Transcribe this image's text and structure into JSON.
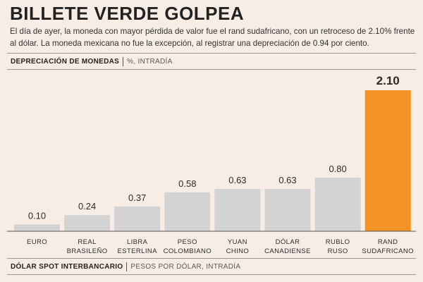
{
  "header": {
    "title": "BILLETE VERDE GOLPEA",
    "description": "El día de ayer, la moneda con mayor pérdida de valor fue el rand sudafricano, con un retroceso de 2.10% frente al dólar. La moneda mexicana no fue la excepción, al registrar una depreciación de 0.94 por ciento."
  },
  "section_top": {
    "heading": "DEPRECIACIÓN DE MONEDAS",
    "subtitle": "%, INTRADÍA"
  },
  "section_bottom": {
    "heading": "DÓLAR SPOT INTERBANCARIO",
    "subtitle": "PESOS POR DÓLAR, INTRADÍA"
  },
  "colors": {
    "bar": "#d3d3d3",
    "highlight": "#f39325",
    "axis": "#555555",
    "background": "#f8ede5"
  },
  "chart_data": {
    "type": "bar",
    "title": "DEPRECIACIÓN DE MONEDAS",
    "ylabel": "%, INTRADÍA",
    "xlabel": "",
    "ylim": [
      0,
      2.1
    ],
    "categories": [
      [
        "EURO"
      ],
      [
        "REAL",
        "BRASILEÑO"
      ],
      [
        "LIBRA",
        "ESTERLINA"
      ],
      [
        "PESO",
        "COLOMBIANO"
      ],
      [
        "YUAN",
        "CHINO"
      ],
      [
        "DÓLAR",
        "CANADIENSE"
      ],
      [
        "RUBLO",
        "RUSO"
      ],
      [
        "RAND",
        "SUDAFRICANO"
      ]
    ],
    "values": [
      0.1,
      0.24,
      0.37,
      0.58,
      0.63,
      0.63,
      0.8,
      2.1
    ],
    "labels": [
      "0.10",
      "0.24",
      "0.37",
      "0.58",
      "0.63",
      "0.63",
      "0.80",
      "2.10"
    ],
    "highlight_index": 7
  }
}
